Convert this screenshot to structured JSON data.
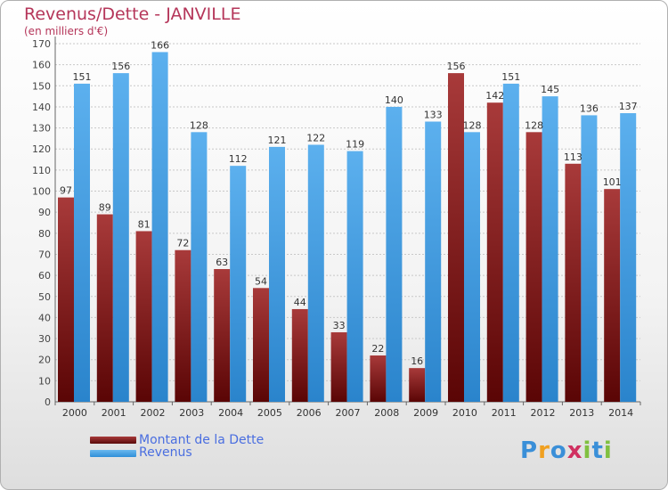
{
  "title": "Revenus/Dette - JANVILLE",
  "subtitle": "(en milliers d'€)",
  "legend": {
    "dette_label": "Montant de la Dette",
    "revenus_label": "Revenus"
  },
  "logo": {
    "text": "Proxiti",
    "letters": [
      "P",
      "r",
      "o",
      "x",
      "i",
      "t",
      "i"
    ],
    "colors": [
      "#3a8fd8",
      "#f0a020",
      "#3a8fd8",
      "#d03060",
      "#80c040",
      "#3a8fd8",
      "#80c040"
    ]
  },
  "colors": {
    "dette": "#7a1a1a",
    "revenus": "#4aa3e6",
    "text": "#b5365a"
  },
  "chart_data": {
    "type": "bar",
    "categories": [
      "2000",
      "2001",
      "2002",
      "2003",
      "2004",
      "2005",
      "2006",
      "2007",
      "2008",
      "2009",
      "2010",
      "2011",
      "2012",
      "2013",
      "2014"
    ],
    "series": [
      {
        "name": "Montant de la Dette",
        "values": [
          97,
          89,
          81,
          72,
          63,
          54,
          44,
          33,
          22,
          16,
          156,
          142,
          128,
          113,
          101
        ]
      },
      {
        "name": "Revenus",
        "values": [
          151,
          156,
          166,
          128,
          112,
          121,
          122,
          119,
          140,
          133,
          128,
          151,
          145,
          136,
          137
        ]
      }
    ],
    "ylim": [
      0,
      170
    ],
    "yticks": [
      0,
      10,
      20,
      30,
      40,
      50,
      60,
      70,
      80,
      90,
      100,
      110,
      120,
      130,
      140,
      150,
      160,
      170
    ],
    "grid": true,
    "legend_position": "bottom-left"
  }
}
